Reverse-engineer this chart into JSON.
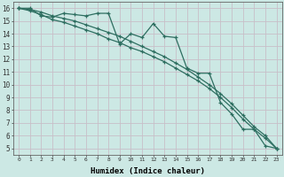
{
  "xlabel": "Humidex (Indice chaleur)",
  "xlim": [
    -0.5,
    23.5
  ],
  "ylim": [
    4.5,
    16.5
  ],
  "xticks": [
    0,
    1,
    2,
    3,
    4,
    5,
    6,
    7,
    8,
    9,
    10,
    11,
    12,
    13,
    14,
    15,
    16,
    17,
    18,
    19,
    20,
    21,
    22,
    23
  ],
  "yticks": [
    5,
    6,
    7,
    8,
    9,
    10,
    11,
    12,
    13,
    14,
    15,
    16
  ],
  "background_color": "#cce8e4",
  "grid_color": "#c8bfc8",
  "line_color": "#2d6e60",
  "line1_x": [
    0,
    1,
    2,
    3,
    4,
    5,
    6,
    7,
    8,
    9,
    10,
    11,
    12,
    13,
    14,
    15,
    16,
    17,
    18,
    19,
    20,
    21,
    22,
    23
  ],
  "line1_y": [
    16.0,
    16.0,
    15.4,
    15.3,
    15.6,
    15.5,
    15.4,
    15.6,
    15.6,
    13.2,
    14.0,
    13.7,
    14.8,
    13.8,
    13.7,
    11.3,
    10.9,
    10.9,
    8.6,
    7.7,
    6.5,
    6.5,
    5.2,
    5.0
  ],
  "line2_x": [
    0,
    1,
    2,
    3,
    4,
    5,
    6,
    7,
    8,
    9,
    10,
    11,
    12,
    13,
    14,
    15,
    16,
    17,
    18,
    19,
    20,
    21,
    22,
    23
  ],
  "line2_y": [
    16.0,
    15.8,
    15.5,
    15.1,
    14.9,
    14.6,
    14.3,
    14.0,
    13.6,
    13.3,
    12.9,
    12.6,
    12.2,
    11.8,
    11.3,
    10.8,
    10.3,
    9.7,
    9.0,
    8.2,
    7.3,
    6.5,
    5.8,
    5.0
  ],
  "line3_x": [
    0,
    1,
    2,
    3,
    4,
    5,
    6,
    7,
    8,
    9,
    10,
    11,
    12,
    13,
    14,
    15,
    16,
    17,
    18,
    19,
    20,
    21,
    22,
    23
  ],
  "line3_y": [
    16.0,
    15.9,
    15.7,
    15.4,
    15.2,
    15.0,
    14.7,
    14.4,
    14.1,
    13.8,
    13.4,
    13.0,
    12.6,
    12.2,
    11.7,
    11.2,
    10.6,
    10.0,
    9.3,
    8.5,
    7.6,
    6.7,
    6.0,
    5.0
  ]
}
